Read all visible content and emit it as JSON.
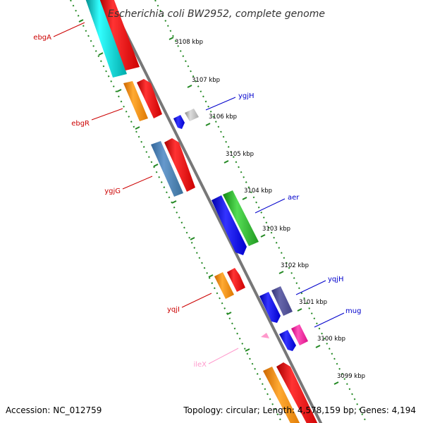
{
  "header": {
    "title": "Escherichia coli BW2952, complete genome"
  },
  "footer": {
    "accession": "Accession: NC_012759",
    "summary": "Topology: circular; Length: 4,578,159 bp; Genes: 4,194"
  },
  "ticks": [
    "3108 kbp",
    "3107 kbp",
    "3106 kbp",
    "3105 kbp",
    "3104 kbp",
    "3103 kbp",
    "3102 kbp",
    "3101 kbp",
    "3100 kbp",
    "3099 kbp"
  ],
  "genes": [
    {
      "label": "ebgA",
      "color": "#cc0000"
    },
    {
      "label": "ebgR",
      "color": "#cc0000"
    },
    {
      "label": "ygjG",
      "color": "#cc0000"
    },
    {
      "label": "yqjI",
      "color": "#cc0000"
    },
    {
      "label": "ileX",
      "color": "#ff99cc"
    },
    {
      "label": "ygjH",
      "color": "#0000cc"
    },
    {
      "label": "aer",
      "color": "#0000cc"
    },
    {
      "label": "yqjH",
      "color": "#0000cc"
    },
    {
      "label": "mug",
      "color": "#0000cc"
    }
  ]
}
